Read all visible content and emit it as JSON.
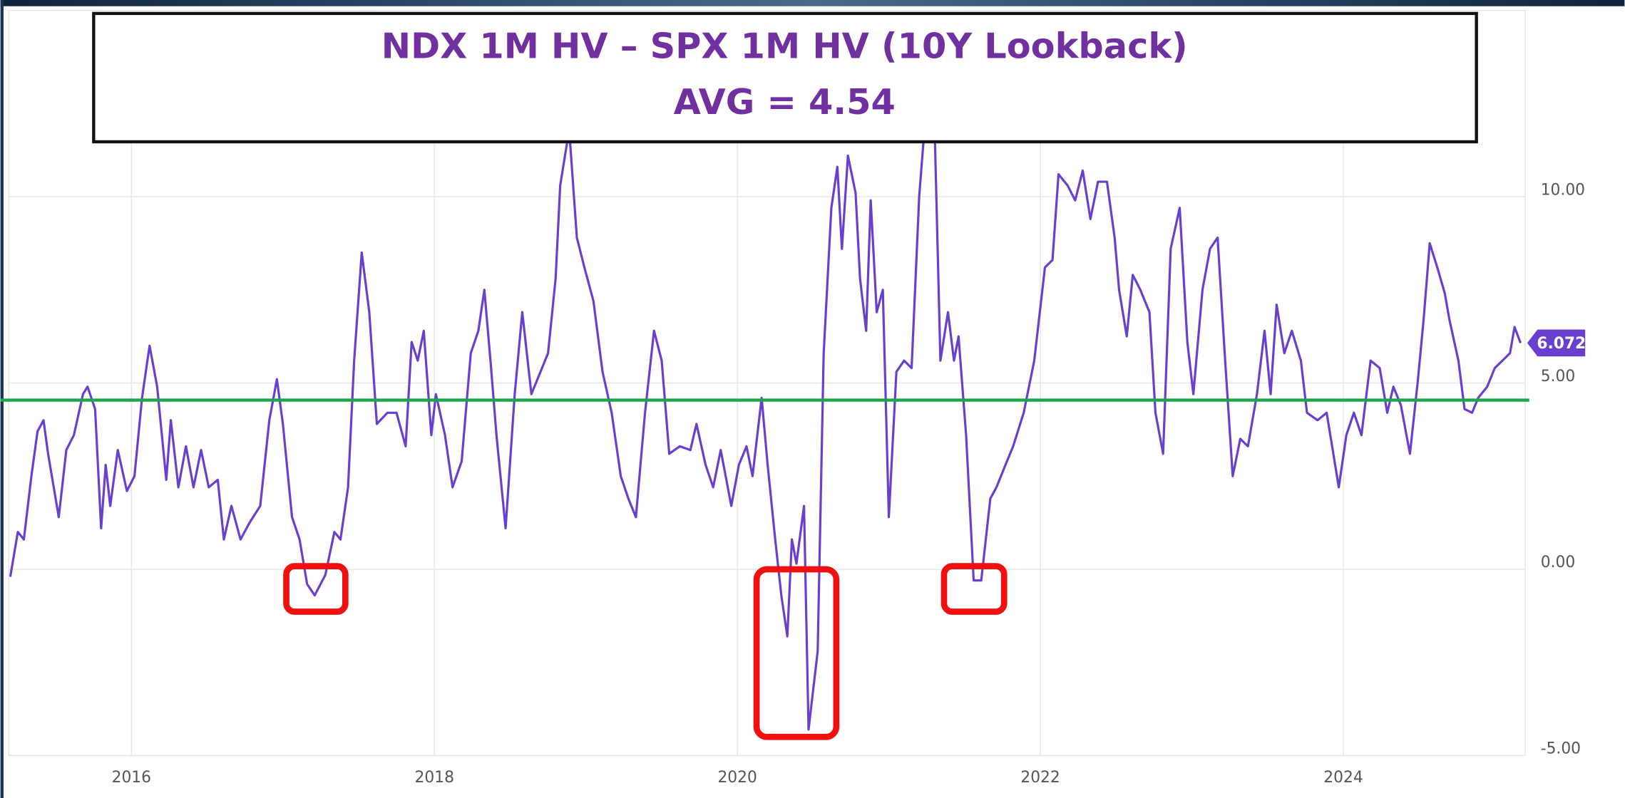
{
  "chart_data": {
    "type": "line",
    "title": "NDX 1M HV – SPX 1M HV (10Y Lookback)",
    "subtitle": "AVG = 4.54",
    "avg_line": 4.54,
    "avg_color": "#1aa64a",
    "last_value_label": "6.072",
    "xlim": [
      2015.19,
      2025.2
    ],
    "xticks": [
      2016,
      2018,
      2020,
      2022,
      2024
    ],
    "ylim": [
      -5,
      15
    ],
    "yticks": [
      {
        "value": -5,
        "label": "-5.00"
      },
      {
        "value": 0,
        "label": "0.00"
      },
      {
        "value": 5,
        "label": "5.00"
      },
      {
        "value": 10,
        "label": "10.00"
      }
    ],
    "grid": true,
    "series": [
      {
        "color": "#6a3fcf",
        "x": [
          2015.2,
          2015.25,
          2015.29,
          2015.34,
          2015.38,
          2015.42,
          2015.45,
          2015.52,
          2015.57,
          2015.62,
          2015.68,
          2015.71,
          2015.76,
          2015.8,
          2015.83,
          2015.86,
          2015.91,
          2015.97,
          2016.02,
          2016.07,
          2016.12,
          2016.17,
          2016.23,
          2016.26,
          2016.31,
          2016.36,
          2016.41,
          2016.46,
          2016.51,
          2016.57,
          2016.61,
          2016.66,
          2016.72,
          2016.78,
          2016.85,
          2016.91,
          2016.96,
          2017.0,
          2017.06,
          2017.11,
          2017.16,
          2017.21,
          2017.28,
          2017.34,
          2017.38,
          2017.43,
          2017.47,
          2017.52,
          2017.57,
          2017.62,
          2017.69,
          2017.75,
          2017.81,
          2017.85,
          2017.89,
          2017.93,
          2017.98,
          2018.01,
          2018.07,
          2018.12,
          2018.18,
          2018.24,
          2018.29,
          2018.33,
          2018.37,
          2018.41,
          2018.47,
          2018.53,
          2018.58,
          2018.64,
          2018.7,
          2018.75,
          2018.8,
          2018.83,
          2018.89,
          2018.94,
          2018.99,
          2019.05,
          2019.11,
          2019.17,
          2019.23,
          2019.28,
          2019.33,
          2019.39,
          2019.45,
          2019.5,
          2019.55,
          2019.62,
          2019.69,
          2019.73,
          2019.79,
          2019.84,
          2019.89,
          2019.96,
          2020.01,
          2020.06,
          2020.1,
          2020.16,
          2020.2,
          2020.25,
          2020.29,
          2020.33,
          2020.36,
          2020.39,
          2020.44,
          2020.47,
          2020.53,
          2020.57,
          2020.62,
          2020.66,
          2020.69,
          2020.73,
          2020.78,
          2020.81,
          2020.85,
          2020.88,
          2020.92,
          2020.96,
          2021.0,
          2021.05,
          2021.1,
          2021.15,
          2021.2,
          2021.25,
          2021.3,
          2021.34,
          2021.39,
          2021.43,
          2021.46,
          2021.51,
          2021.56,
          2021.61,
          2021.67,
          2021.71,
          2021.77,
          2021.82,
          2021.89,
          2021.96,
          2022.03,
          2022.08,
          2022.12,
          2022.18,
          2022.23,
          2022.28,
          2022.33,
          2022.38,
          2022.44,
          2022.49,
          2022.52,
          2022.57,
          2022.61,
          2022.66,
          2022.72,
          2022.76,
          2022.81,
          2022.86,
          2022.92,
          2022.97,
          2023.01,
          2023.07,
          2023.12,
          2023.17,
          2023.22,
          2023.27,
          2023.32,
          2023.37,
          2023.43,
          2023.48,
          2023.52,
          2023.56,
          2023.61,
          2023.66,
          2023.72,
          2023.76,
          2023.83,
          2023.89,
          2023.97,
          2024.02,
          2024.07,
          2024.12,
          2024.18,
          2024.24,
          2024.29,
          2024.33,
          2024.38,
          2024.44,
          2024.49,
          2024.53,
          2024.57,
          2024.62,
          2024.67,
          2024.7,
          2024.76,
          2024.8,
          2024.85,
          2024.89,
          2024.95,
          2025.0,
          2025.05,
          2025.1,
          2025.13,
          2025.17
        ],
        "values": [
          -0.2,
          1.0,
          0.8,
          2.5,
          3.7,
          4.0,
          3.1,
          1.4,
          3.2,
          3.6,
          4.7,
          4.9,
          4.3,
          1.1,
          2.8,
          1.7,
          3.2,
          2.1,
          2.5,
          4.6,
          6.0,
          4.9,
          2.4,
          4.0,
          2.2,
          3.3,
          2.2,
          3.2,
          2.2,
          2.4,
          0.8,
          1.7,
          0.8,
          1.25,
          1.7,
          4.0,
          5.1,
          3.9,
          1.4,
          0.8,
          -0.4,
          -0.7,
          -0.15,
          1.0,
          0.8,
          2.2,
          5.6,
          8.5,
          6.9,
          3.9,
          4.2,
          4.2,
          3.3,
          6.1,
          5.6,
          6.4,
          3.6,
          4.7,
          3.6,
          2.2,
          2.9,
          5.8,
          6.4,
          7.5,
          5.6,
          3.6,
          1.1,
          4.7,
          6.9,
          4.7,
          5.3,
          5.8,
          7.8,
          10.3,
          11.8,
          8.9,
          8.1,
          7.2,
          5.3,
          4.2,
          2.5,
          1.9,
          1.4,
          4.2,
          6.4,
          5.6,
          3.1,
          3.3,
          3.2,
          3.9,
          2.8,
          2.2,
          3.2,
          1.7,
          2.8,
          3.3,
          2.5,
          4.6,
          2.8,
          0.8,
          -0.7,
          -1.8,
          0.8,
          0.15,
          1.7,
          -4.3,
          -2.2,
          5.8,
          9.7,
          10.8,
          8.6,
          11.1,
          10.1,
          7.8,
          6.4,
          9.9,
          6.9,
          7.5,
          1.4,
          5.3,
          5.6,
          5.4,
          10.0,
          12.6,
          12.2,
          5.6,
          6.9,
          5.6,
          6.25,
          3.6,
          -0.3,
          -0.3,
          1.9,
          2.2,
          2.8,
          3.3,
          4.2,
          5.6,
          8.1,
          8.3,
          10.6,
          10.3,
          9.9,
          10.7,
          9.4,
          10.4,
          10.4,
          8.9,
          7.5,
          6.25,
          7.9,
          7.5,
          6.9,
          4.2,
          3.1,
          8.6,
          9.7,
          6.1,
          4.7,
          7.5,
          8.6,
          8.9,
          5.6,
          2.5,
          3.5,
          3.3,
          4.7,
          6.4,
          4.7,
          7.1,
          5.8,
          6.4,
          5.6,
          4.2,
          4.0,
          4.2,
          2.2,
          3.6,
          4.2,
          3.6,
          5.6,
          5.4,
          4.2,
          4.9,
          4.4,
          3.1,
          5.0,
          6.7,
          8.75,
          8.1,
          7.4,
          6.7,
          5.6,
          4.3,
          4.2,
          4.6,
          4.9,
          5.4,
          5.6,
          5.8,
          6.5,
          6.072
        ]
      }
    ]
  }
}
